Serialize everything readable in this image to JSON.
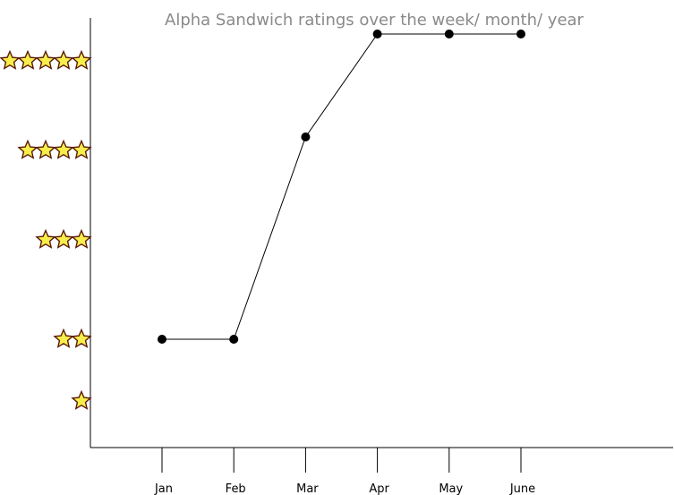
{
  "chart_data": {
    "type": "line",
    "title": "Alpha Sandwich ratings over the week/ month/ year",
    "xlabel": "",
    "ylabel": "",
    "categories": [
      "Jan",
      "Feb",
      "Mar",
      "Apr",
      "May",
      "June"
    ],
    "y_tick_values": [
      1,
      2,
      3,
      4,
      5
    ],
    "y_tick_style": "star-icons",
    "values": [
      2,
      2,
      4.15,
      5.3,
      5.3,
      5.3
    ],
    "grid": false,
    "legend": "none",
    "colors": {
      "line": "#000000",
      "point": "#000000",
      "title": "#8a8a8a",
      "star_fill": "#f7ee4a",
      "star_stroke": "#5a1a0a"
    }
  }
}
